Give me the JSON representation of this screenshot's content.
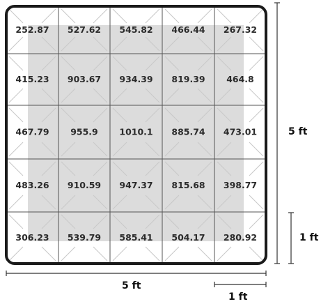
{
  "grid": {
    "rows": 5,
    "cols": 5,
    "values": [
      [
        "252.87",
        "527.62",
        "545.82",
        "466.44",
        "267.32"
      ],
      [
        "415.23",
        "903.67",
        "934.39",
        "819.39",
        "464.8"
      ],
      [
        "467.79",
        "955.9",
        "1010.1",
        "885.74",
        "473.01"
      ],
      [
        "483.26",
        "910.59",
        "947.37",
        "815.68",
        "398.77"
      ],
      [
        "306.23",
        "539.79",
        "585.41",
        "504.17",
        "280.92"
      ]
    ]
  },
  "dimensions": {
    "width_label": "5 ft",
    "height_label": "5 ft",
    "unit_width_label": "1 ft",
    "unit_height_label": "1 ft"
  },
  "colors": {
    "frame": "#1a1a1a",
    "grid_line": "#555555",
    "shaded_area": "#dcdcdc",
    "diagonal_line": "#c8c8c8",
    "text": "#2b2b2b",
    "dimension_line": "#333333"
  }
}
